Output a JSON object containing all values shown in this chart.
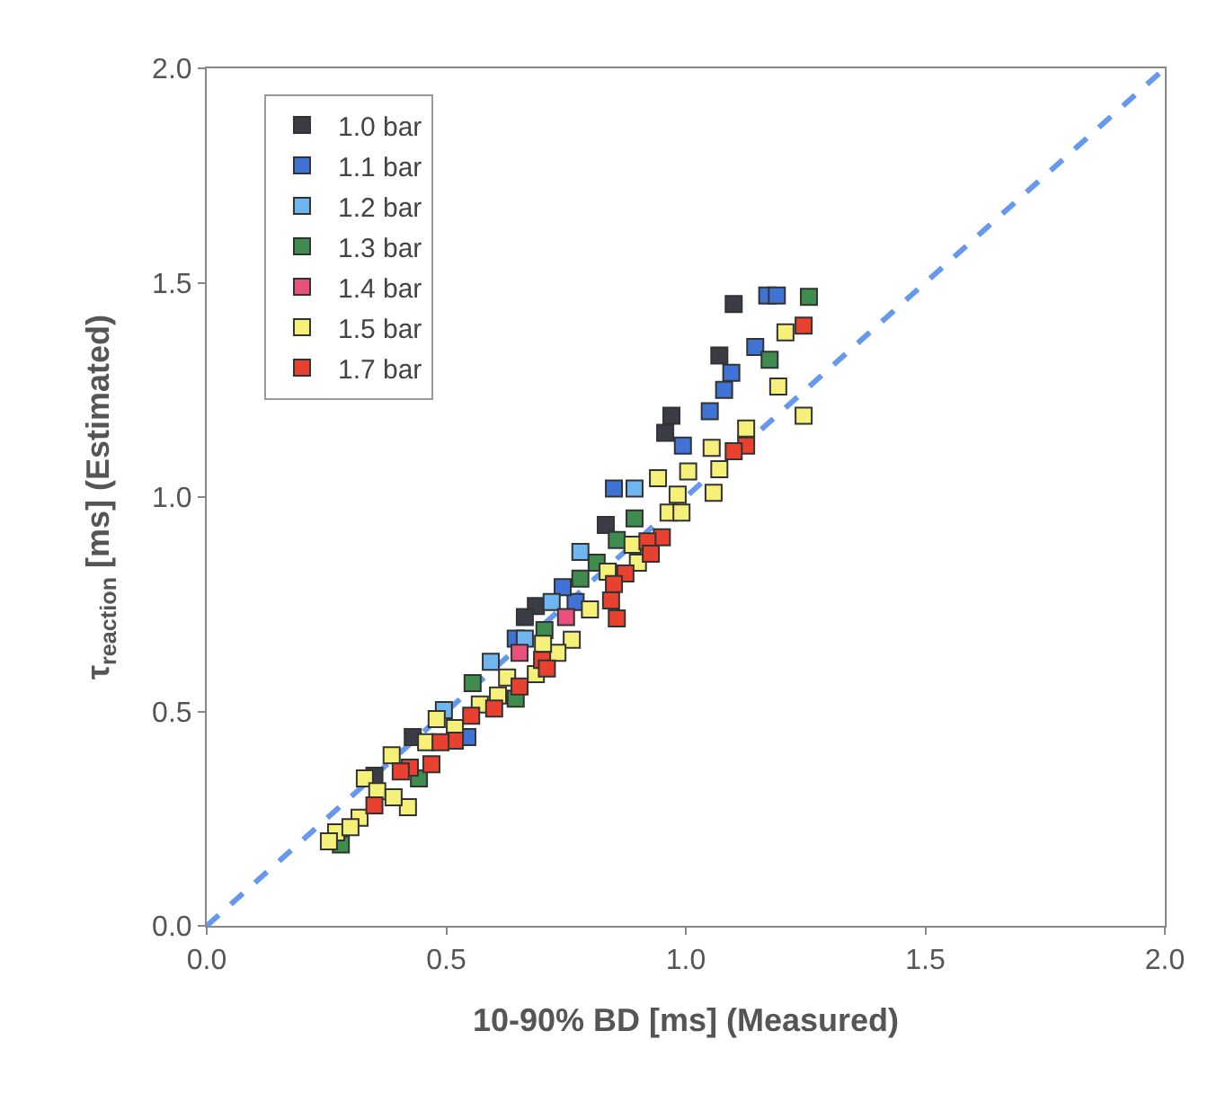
{
  "chart_data": {
    "type": "scatter",
    "xlabel": "10-90% BD [ms] (Measured)",
    "ylabel": "τ$_{reaction}$ [ms] (Estimated)",
    "xlim": [
      0,
      2
    ],
    "ylim": [
      0,
      2
    ],
    "xticks": [
      {
        "value": 0,
        "label": "0.0"
      },
      {
        "value": 0.5,
        "label": "0.5"
      },
      {
        "value": 1,
        "label": "1.0"
      },
      {
        "value": 1.5,
        "label": "1.5"
      },
      {
        "value": 2,
        "label": "2.0"
      }
    ],
    "yticks": [
      {
        "value": 0,
        "label": "0.0"
      },
      {
        "value": 0.5,
        "label": "0.5"
      },
      {
        "value": 1,
        "label": "1.0"
      },
      {
        "value": 1.5,
        "label": "1.5"
      },
      {
        "value": 2,
        "label": "2.0"
      }
    ],
    "grid": false,
    "legend": "top left",
    "marker": "square",
    "series": [
      {
        "type": "line",
        "color": "#6699ee",
        "line_style": "dashed",
        "marker": "none",
        "x": [
          0,
          2
        ],
        "values": [
          0,
          2
        ]
      },
      {
        "name": "1.0 bar",
        "color": "#3a3d45",
        "x": [
          1.1,
          1.07,
          0.97,
          0.957,
          0.833,
          0.687,
          0.664,
          0.43,
          0.35
        ],
        "values": [
          1.45,
          1.33,
          1.19,
          1.15,
          0.935,
          0.746,
          0.72,
          0.44,
          0.35
        ]
      },
      {
        "name": "1.1 bar",
        "color": "#3f74d6",
        "x": [
          1.17,
          1.19,
          1.145,
          1.095,
          1.08,
          1.05,
          0.994,
          0.85,
          0.77,
          0.743,
          0.645,
          0.544
        ],
        "values": [
          1.47,
          1.47,
          1.35,
          1.29,
          1.25,
          1.2,
          1.12,
          1.02,
          0.755,
          0.79,
          0.67,
          0.44
        ]
      },
      {
        "name": "1.2 bar",
        "color": "#6fb5ef",
        "x": [
          0.893,
          0.78,
          0.72,
          0.664,
          0.593,
          0.495
        ],
        "values": [
          1.02,
          0.872,
          0.755,
          0.67,
          0.616,
          0.503
        ]
      },
      {
        "name": "1.3 bar",
        "color": "#3f8c4f",
        "x": [
          1.257,
          1.175,
          0.893,
          0.856,
          0.814,
          0.78,
          0.705,
          0.645,
          0.555,
          0.443,
          0.28
        ],
        "values": [
          1.467,
          1.32,
          0.95,
          0.9,
          0.847,
          0.81,
          0.69,
          0.53,
          0.566,
          0.344,
          0.19
        ]
      },
      {
        "name": "1.4 bar",
        "color": "#e8507d",
        "x": [
          0.75,
          0.653
        ],
        "values": [
          0.72,
          0.637
        ]
      },
      {
        "name": "1.5 bar",
        "color": "#f5f07a",
        "x": [
          1.208,
          1.193,
          1.246,
          1.126,
          1.054,
          1.07,
          1.058,
          1.005,
          0.983,
          0.964,
          0.991,
          0.942,
          0.9,
          0.889,
          0.837,
          0.8,
          0.762,
          0.732,
          0.702,
          0.687,
          0.627,
          0.608,
          0.57,
          0.518,
          0.458,
          0.386,
          0.33,
          0.356,
          0.42,
          0.39,
          0.319,
          0.27,
          0.3,
          0.255,
          0.48
        ],
        "values": [
          1.384,
          1.258,
          1.19,
          1.16,
          1.115,
          1.065,
          1.01,
          1.06,
          1.006,
          0.964,
          0.964,
          1.044,
          0.847,
          0.889,
          0.826,
          0.738,
          0.667,
          0.637,
          0.658,
          0.587,
          0.579,
          0.537,
          0.516,
          0.461,
          0.428,
          0.398,
          0.344,
          0.314,
          0.277,
          0.3,
          0.252,
          0.218,
          0.23,
          0.197,
          0.482
        ]
      },
      {
        "name": "1.7 bar",
        "color": "#e8412f",
        "x": [
          1.246,
          1.126,
          1.1,
          0.95,
          0.92,
          0.927,
          0.874,
          0.85,
          0.844,
          0.856,
          0.7,
          0.71,
          0.653,
          0.6,
          0.552,
          0.518,
          0.488,
          0.469,
          0.424,
          0.405,
          0.35
        ],
        "values": [
          1.4,
          1.12,
          1.107,
          0.906,
          0.897,
          0.868,
          0.822,
          0.797,
          0.759,
          0.717,
          0.62,
          0.6,
          0.558,
          0.507,
          0.49,
          0.432,
          0.428,
          0.377,
          0.369,
          0.36,
          0.281
        ]
      }
    ]
  }
}
